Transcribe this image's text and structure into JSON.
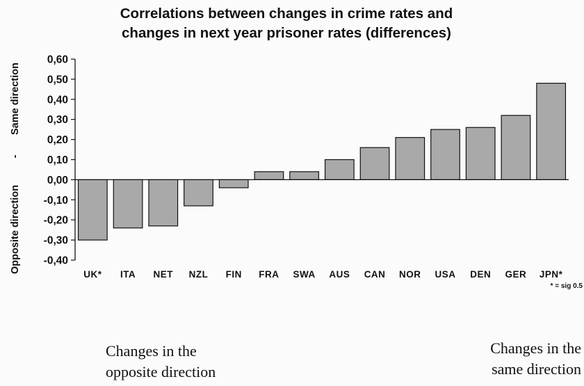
{
  "chart_data": {
    "type": "bar",
    "title_lines": [
      "Correlations between changes in crime rates and",
      "changes in next year prisoner rates (differences)"
    ],
    "ylabel_left": "Opposite direction",
    "ylabel_sep": "-",
    "ylabel_right": "Same direction",
    "categories": [
      "UK*",
      "ITA",
      "NET",
      "NZL",
      "FIN",
      "FRA",
      "SWA",
      "AUS",
      "CAN",
      "NOR",
      "USA",
      "DEN",
      "GER",
      "JPN*"
    ],
    "values": [
      -0.3,
      -0.24,
      -0.23,
      -0.13,
      -0.04,
      0.04,
      0.04,
      0.1,
      0.16,
      0.21,
      0.25,
      0.26,
      0.32,
      0.48
    ],
    "ylim": [
      -0.4,
      0.6
    ],
    "yticks": [
      0.6,
      0.5,
      0.4,
      0.3,
      0.2,
      0.1,
      0.0,
      -0.1,
      -0.2,
      -0.3,
      -0.4
    ],
    "ytick_labels": [
      "0,60",
      "0,50",
      "0,40",
      "0,30",
      "0,20",
      "0,10",
      "0,00",
      "-0,10",
      "-0,20",
      "-0,30",
      "-0,40"
    ],
    "footnote": "* = sig 0.5",
    "bar_color": "#a9a9a9",
    "grid": false
  },
  "captions": {
    "left": [
      "Changes in the",
      "opposite direction"
    ],
    "right": [
      "Changes in the",
      "same direction"
    ]
  }
}
